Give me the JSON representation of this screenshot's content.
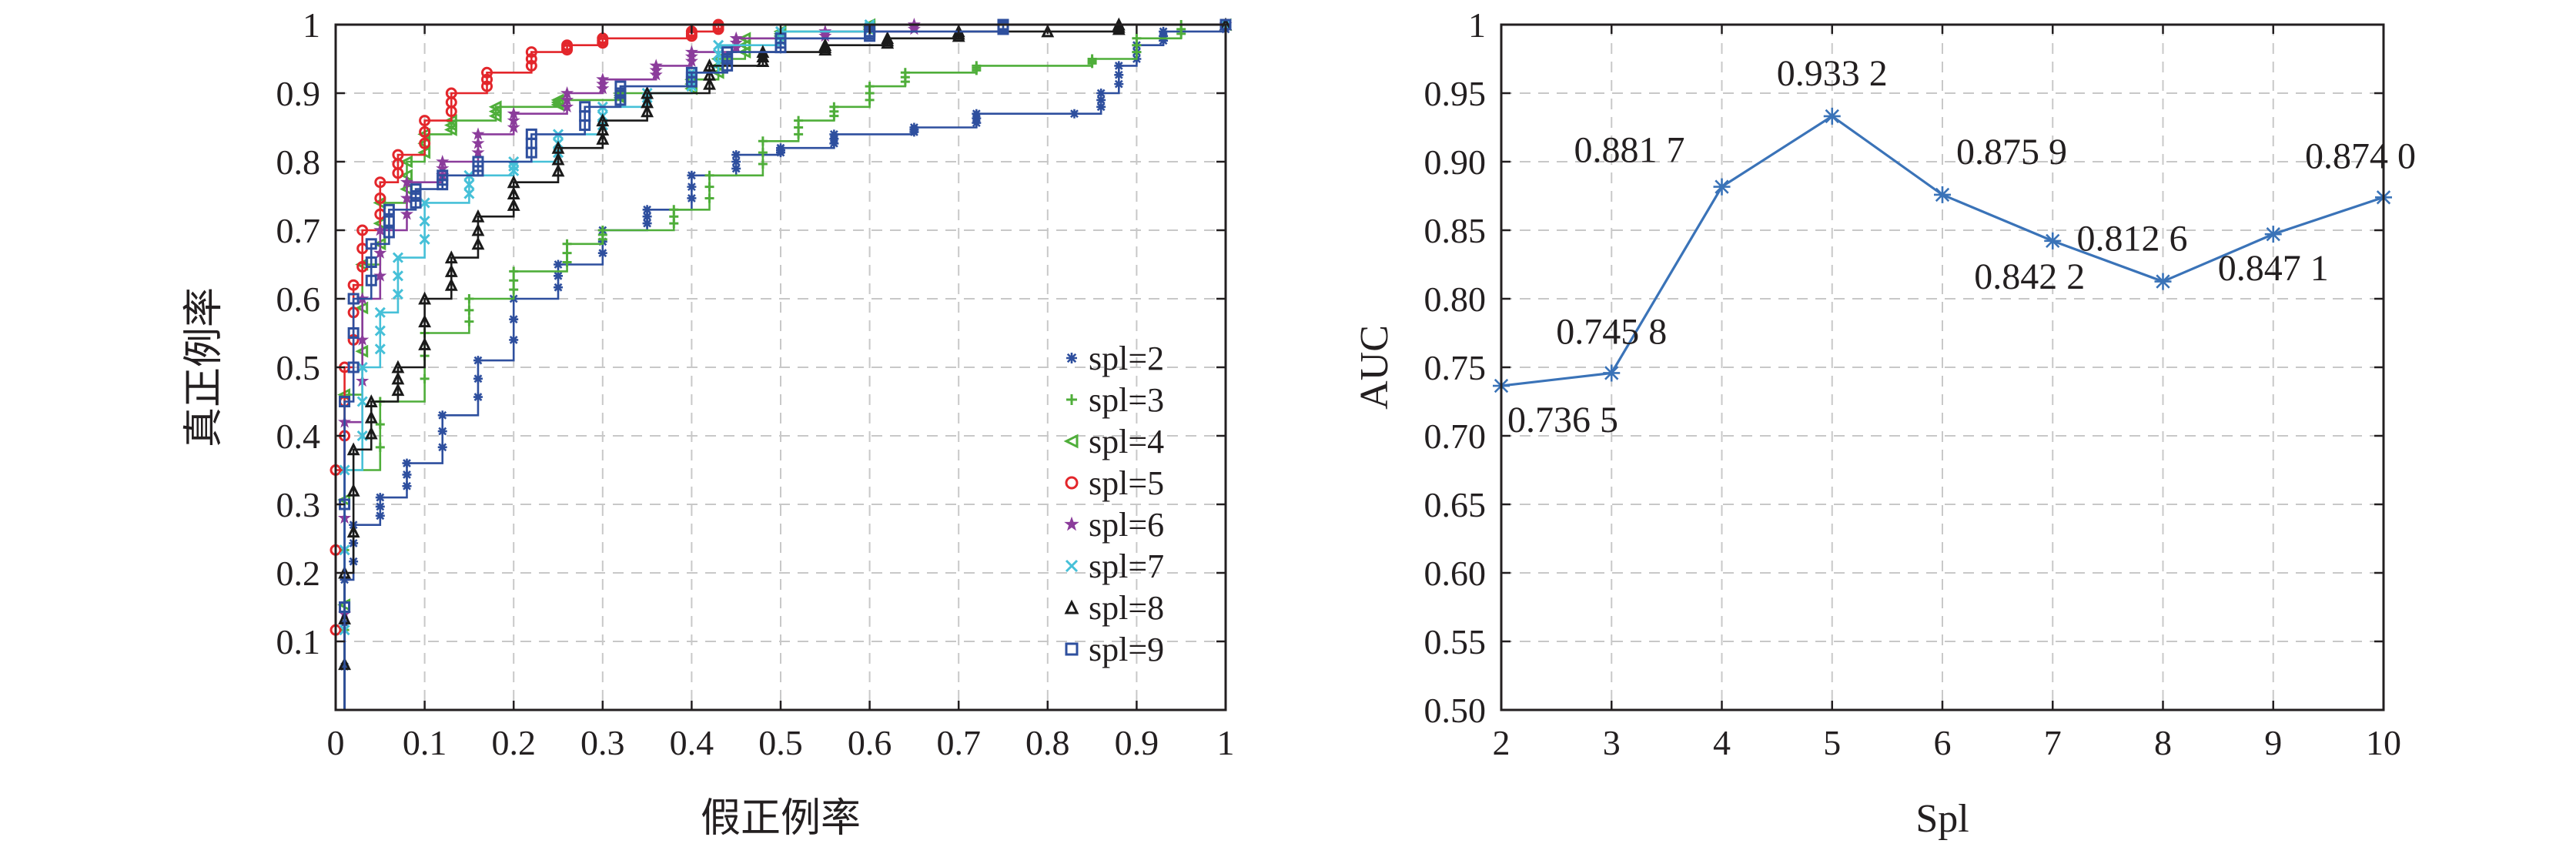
{
  "chart_data": [
    {
      "type": "line",
      "subtype": "roc",
      "xlabel": "假正例率",
      "ylabel": "真正例率",
      "xlim": [
        0,
        1
      ],
      "ylim": [
        0,
        1
      ],
      "xticks": [
        "0",
        "0.1",
        "0.2",
        "0.3",
        "0.4",
        "0.5",
        "0.6",
        "0.7",
        "0.8",
        "0.9",
        "1"
      ],
      "yticks": [
        "0.1",
        "0.2",
        "0.3",
        "0.4",
        "0.5",
        "0.6",
        "0.7",
        "0.8",
        "0.9",
        "1"
      ],
      "grid": true,
      "legend_position": "lower-right",
      "series": [
        {
          "name": "spl=2",
          "color": "#2e4f9e",
          "marker": "asterisk",
          "points": [
            [
              0,
              0
            ],
            [
              0.01,
              0.19
            ],
            [
              0.02,
              0.27
            ],
            [
              0.05,
              0.31
            ],
            [
              0.08,
              0.36
            ],
            [
              0.12,
              0.43
            ],
            [
              0.16,
              0.51
            ],
            [
              0.2,
              0.6
            ],
            [
              0.25,
              0.65
            ],
            [
              0.3,
              0.7
            ],
            [
              0.35,
              0.73
            ],
            [
              0.4,
              0.78
            ],
            [
              0.45,
              0.81
            ],
            [
              0.5,
              0.82
            ],
            [
              0.56,
              0.84
            ],
            [
              0.65,
              0.85
            ],
            [
              0.72,
              0.87
            ],
            [
              0.83,
              0.87
            ],
            [
              0.86,
              0.9
            ],
            [
              0.88,
              0.94
            ],
            [
              0.9,
              0.97
            ],
            [
              0.93,
              0.99
            ],
            [
              1,
              1
            ]
          ]
        },
        {
          "name": "spl=3",
          "color": "#4fae3a",
          "marker": "plus",
          "points": [
            [
              0,
              0
            ],
            [
              0.01,
              0.35
            ],
            [
              0.05,
              0.45
            ],
            [
              0.1,
              0.55
            ],
            [
              0.15,
              0.6
            ],
            [
              0.2,
              0.64
            ],
            [
              0.26,
              0.68
            ],
            [
              0.3,
              0.7
            ],
            [
              0.38,
              0.73
            ],
            [
              0.42,
              0.78
            ],
            [
              0.48,
              0.83
            ],
            [
              0.52,
              0.86
            ],
            [
              0.56,
              0.88
            ],
            [
              0.6,
              0.91
            ],
            [
              0.64,
              0.93
            ],
            [
              0.72,
              0.94
            ],
            [
              0.85,
              0.95
            ],
            [
              0.9,
              0.98
            ],
            [
              0.95,
              1
            ],
            [
              1,
              1
            ]
          ]
        },
        {
          "name": "spl=4",
          "color": "#4fae3a",
          "marker": "triangle-left",
          "points": [
            [
              0,
              0
            ],
            [
              0.01,
              0.46
            ],
            [
              0.03,
              0.65
            ],
            [
              0.05,
              0.74
            ],
            [
              0.08,
              0.8
            ],
            [
              0.1,
              0.84
            ],
            [
              0.13,
              0.86
            ],
            [
              0.18,
              0.88
            ],
            [
              0.25,
              0.89
            ],
            [
              0.32,
              0.9
            ],
            [
              0.4,
              0.92
            ],
            [
              0.43,
              0.95
            ],
            [
              0.46,
              0.98
            ],
            [
              0.5,
              0.99
            ],
            [
              0.6,
              1
            ],
            [
              1,
              1
            ]
          ]
        },
        {
          "name": "spl=5",
          "color": "#e3262b",
          "marker": "circle",
          "points": [
            [
              0,
              0
            ],
            [
              0,
              0.35
            ],
            [
              0.01,
              0.5
            ],
            [
              0.02,
              0.62
            ],
            [
              0.03,
              0.7
            ],
            [
              0.05,
              0.77
            ],
            [
              0.07,
              0.81
            ],
            [
              0.1,
              0.86
            ],
            [
              0.13,
              0.9
            ],
            [
              0.17,
              0.93
            ],
            [
              0.22,
              0.96
            ],
            [
              0.26,
              0.97
            ],
            [
              0.3,
              0.98
            ],
            [
              0.4,
              0.99
            ],
            [
              0.43,
              1
            ],
            [
              1,
              1
            ]
          ]
        },
        {
          "name": "spl=6",
          "color": "#8b3c9b",
          "marker": "star",
          "points": [
            [
              0,
              0
            ],
            [
              0.01,
              0.42
            ],
            [
              0.03,
              0.6
            ],
            [
              0.05,
              0.7
            ],
            [
              0.08,
              0.77
            ],
            [
              0.12,
              0.8
            ],
            [
              0.16,
              0.84
            ],
            [
              0.2,
              0.87
            ],
            [
              0.26,
              0.9
            ],
            [
              0.3,
              0.92
            ],
            [
              0.36,
              0.94
            ],
            [
              0.4,
              0.96
            ],
            [
              0.45,
              0.98
            ],
            [
              0.55,
              0.99
            ],
            [
              0.65,
              1
            ],
            [
              1,
              1
            ]
          ]
        },
        {
          "name": "spl=7",
          "color": "#46c0d8",
          "marker": "cross",
          "points": [
            [
              0,
              0
            ],
            [
              0.01,
              0.35
            ],
            [
              0.03,
              0.5
            ],
            [
              0.05,
              0.58
            ],
            [
              0.07,
              0.66
            ],
            [
              0.1,
              0.74
            ],
            [
              0.15,
              0.78
            ],
            [
              0.2,
              0.8
            ],
            [
              0.25,
              0.84
            ],
            [
              0.3,
              0.88
            ],
            [
              0.35,
              0.9
            ],
            [
              0.4,
              0.93
            ],
            [
              0.43,
              0.97
            ],
            [
              0.5,
              0.99
            ],
            [
              0.6,
              1
            ],
            [
              1,
              1
            ]
          ]
        },
        {
          "name": "spl=8",
          "color": "#1a1a1a",
          "marker": "triangle-up",
          "points": [
            [
              0,
              0
            ],
            [
              0.01,
              0.2
            ],
            [
              0.02,
              0.38
            ],
            [
              0.04,
              0.45
            ],
            [
              0.07,
              0.5
            ],
            [
              0.1,
              0.6
            ],
            [
              0.13,
              0.66
            ],
            [
              0.16,
              0.72
            ],
            [
              0.2,
              0.77
            ],
            [
              0.25,
              0.82
            ],
            [
              0.3,
              0.86
            ],
            [
              0.35,
              0.9
            ],
            [
              0.42,
              0.94
            ],
            [
              0.48,
              0.96
            ],
            [
              0.55,
              0.97
            ],
            [
              0.62,
              0.98
            ],
            [
              0.7,
              0.99
            ],
            [
              0.8,
              0.99
            ],
            [
              0.88,
              1
            ],
            [
              1,
              1
            ]
          ]
        },
        {
          "name": "spl=9",
          "color": "#2e4f9e",
          "marker": "square",
          "points": [
            [
              0,
              0
            ],
            [
              0.01,
              0.45
            ],
            [
              0.02,
              0.6
            ],
            [
              0.04,
              0.68
            ],
            [
              0.06,
              0.73
            ],
            [
              0.09,
              0.76
            ],
            [
              0.12,
              0.78
            ],
            [
              0.16,
              0.8
            ],
            [
              0.22,
              0.84
            ],
            [
              0.28,
              0.88
            ],
            [
              0.32,
              0.91
            ],
            [
              0.4,
              0.93
            ],
            [
              0.44,
              0.96
            ],
            [
              0.5,
              0.98
            ],
            [
              0.6,
              0.99
            ],
            [
              0.75,
              1
            ],
            [
              1,
              1
            ]
          ]
        }
      ]
    },
    {
      "type": "line",
      "xlabel": "Spl",
      "ylabel": "AUC",
      "xlim": [
        2,
        10
      ],
      "ylim": [
        0.5,
        1
      ],
      "xticks": [
        "2",
        "3",
        "4",
        "5",
        "6",
        "7",
        "8",
        "9",
        "10"
      ],
      "yticks": [
        "0.50",
        "0.55",
        "0.60",
        "0.65",
        "0.70",
        "0.75",
        "0.80",
        "0.85",
        "0.90",
        "0.95",
        "1"
      ],
      "grid": true,
      "series": [
        {
          "color": "#3a73b8",
          "marker": "asterisk",
          "x": [
            2,
            3,
            4,
            5,
            6,
            7,
            8,
            9,
            10
          ],
          "values": [
            0.7365,
            0.7458,
            0.8817,
            0.9332,
            0.8759,
            0.8422,
            0.8126,
            0.8471,
            0.874
          ]
        }
      ],
      "data_labels": [
        "0.736 5",
        "0.745 8",
        "0.881 7",
        "0.933 2",
        "0.875 9",
        "0.842 2",
        "0.812 6",
        "0.847 1",
        "0.874 0"
      ]
    }
  ]
}
